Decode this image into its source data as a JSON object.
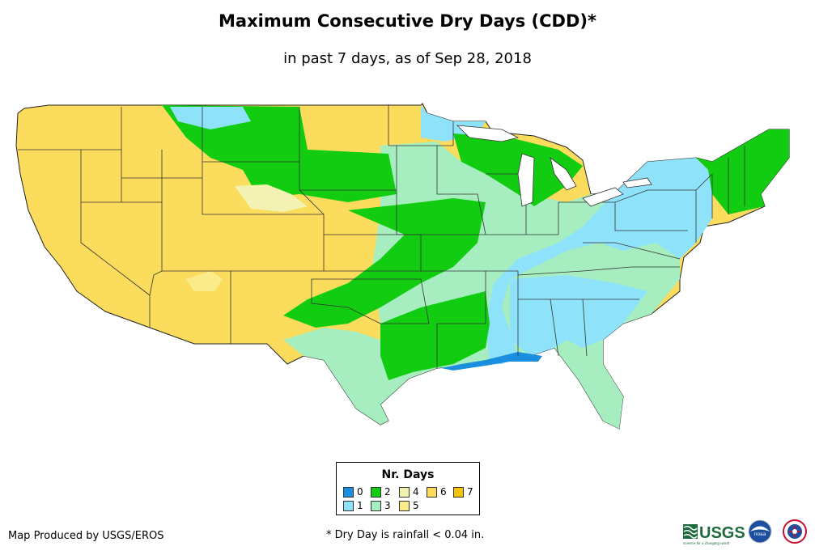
{
  "title": "Maximum Consecutive Dry Days (CDD)*",
  "subtitle": "in past 7 days, as of Sep 28, 2018",
  "legend": {
    "title": "Nr. Days",
    "items": [
      {
        "label": "0",
        "color": "#1a8fe0"
      },
      {
        "label": "1",
        "color": "#8ee3fb"
      },
      {
        "label": "2",
        "color": "#11cc11"
      },
      {
        "label": "3",
        "color": "#a6eec0"
      },
      {
        "label": "4",
        "color": "#f2f3b3"
      },
      {
        "label": "5",
        "color": "#fbec8a"
      },
      {
        "label": "6",
        "color": "#fbdc5c"
      },
      {
        "label": "7",
        "color": "#f5c400"
      }
    ]
  },
  "footer": {
    "credit": "Map Produced by USGS/EROS",
    "note": "* Dry Day is rainfall < 0.04 in."
  },
  "logos": {
    "usgs": "USGS",
    "usgs_tagline": "science for a changing world",
    "noaa": "noaa"
  }
}
